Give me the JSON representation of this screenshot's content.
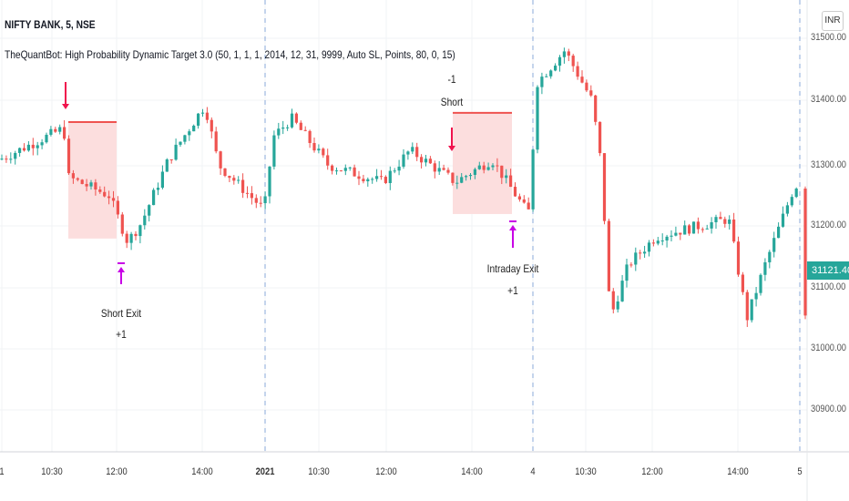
{
  "header": {
    "symbol_title": "NIFTY BANK, 5, NSE",
    "study_title": "TheQuantBot: High Probability Dynamic Target 3.0 (50, 1, 1, 1, 2014, 12, 31, 9999, Auto SL, Points, 80, 0, 15)"
  },
  "currency_badge": "INR",
  "last_price": "31121.40",
  "colors": {
    "up": "#26a69a",
    "down": "#ef5350",
    "signal": "#f0134d",
    "exit": "#c800e6",
    "zone": "#fcdede"
  },
  "price_axis": [
    "31500.00",
    "31400.00",
    "31300.00",
    "31200.00",
    "31100.00",
    "31000.00",
    "30900.00"
  ],
  "time_axis": [
    {
      "label": "1",
      "bold": false
    },
    {
      "label": "10:30",
      "bold": false
    },
    {
      "label": "12:00",
      "bold": false
    },
    {
      "label": "14:00",
      "bold": false
    },
    {
      "label": "2021",
      "bold": true
    },
    {
      "label": "10:30",
      "bold": false
    },
    {
      "label": "12:00",
      "bold": false
    },
    {
      "label": "14:00",
      "bold": false
    },
    {
      "label": "4",
      "bold": false
    },
    {
      "label": "10:30",
      "bold": false
    },
    {
      "label": "12:00",
      "bold": false
    },
    {
      "label": "14:00",
      "bold": false
    },
    {
      "label": "5",
      "bold": false
    }
  ],
  "annotations": {
    "trade1_exit_label": "Short Exit",
    "trade1_exit_qty": "+1",
    "trade2_entry_qty": "-1",
    "trade2_entry_label": "Short",
    "trade2_exit_label": "Intraday Exit",
    "trade2_exit_qty": "+1"
  },
  "chart_data": {
    "type": "candlestick",
    "ylim": [
      30850,
      31560
    ],
    "price_path": [
      [
        0,
        31309
      ],
      [
        70,
        31360
      ],
      [
        75,
        31280
      ],
      [
        120,
        31250
      ],
      [
        140,
        31175
      ],
      [
        155,
        31205
      ],
      [
        185,
        31309
      ],
      [
        225,
        31398
      ],
      [
        240,
        31300
      ],
      [
        290,
        31227
      ],
      [
        300,
        31346
      ],
      [
        320,
        31376
      ],
      [
        360,
        31300
      ],
      [
        420,
        31272
      ],
      [
        450,
        31324
      ],
      [
        500,
        31272
      ],
      [
        540,
        31309
      ],
      [
        580,
        31220
      ],
      [
        590,
        31435
      ],
      [
        620,
        31487
      ],
      [
        650,
        31405
      ],
      [
        660,
        31300
      ],
      [
        670,
        31050
      ],
      [
        690,
        31138
      ],
      [
        720,
        31183
      ],
      [
        760,
        31198
      ],
      [
        800,
        31212
      ],
      [
        820,
        31050
      ],
      [
        840,
        31138
      ],
      [
        870,
        31257
      ],
      [
        876,
        31270
      ],
      [
        880,
        31020
      ],
      [
        890,
        31121
      ]
    ],
    "trades": [
      {
        "entry_price": 31370,
        "exit_price": 31180,
        "side": "short"
      },
      {
        "entry_price": 31385,
        "exit_price": 31220,
        "side": "short"
      }
    ]
  }
}
